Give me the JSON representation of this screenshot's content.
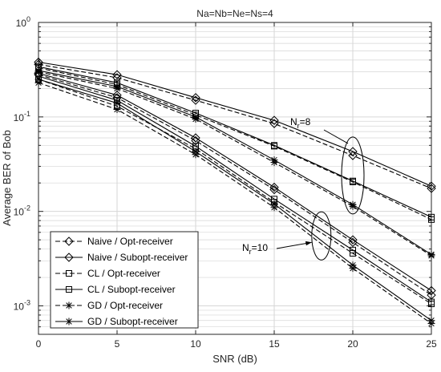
{
  "chart_data": {
    "type": "line",
    "title": "Na=Nb=Ne=Ns=4",
    "xlabel": "SNR (dB)",
    "ylabel": "Average BER of Bob",
    "x": [
      0,
      5,
      10,
      15,
      20,
      25
    ],
    "xlim": [
      0,
      25
    ],
    "ylim": [
      0.0005,
      1
    ],
    "yscale": "log",
    "grid": true,
    "x_ticks": [
      "0",
      "5",
      "10",
      "15",
      "20",
      "25"
    ],
    "y_ticks": [
      {
        "base": "10",
        "exp": "0"
      },
      {
        "base": "10",
        "exp": "-1"
      },
      {
        "base": "10",
        "exp": "-2"
      },
      {
        "base": "10",
        "exp": "-3"
      }
    ],
    "legend_position": "bottom-left",
    "series": [
      {
        "name": "Naive / Opt-receiver",
        "marker": "diamond",
        "dash": "dashed",
        "values": [
          0.36,
          0.26,
          0.15,
          0.085,
          0.039,
          0.0175
        ]
      },
      {
        "name": "Naive / Subopt-receiver",
        "marker": "diamond",
        "dash": "solid",
        "values": [
          0.38,
          0.28,
          0.16,
          0.092,
          0.043,
          0.0185
        ]
      },
      {
        "name": "CL / Opt-receiver",
        "marker": "square",
        "dash": "dashed",
        "values": [
          0.33,
          0.22,
          0.105,
          0.049,
          0.0205,
          0.0082
        ]
      },
      {
        "name": "CL / Subopt-receiver",
        "marker": "square",
        "dash": "solid",
        "values": [
          0.34,
          0.23,
          0.11,
          0.05,
          0.021,
          0.0087
        ]
      },
      {
        "name": "GD / Opt-receiver",
        "marker": "star",
        "dash": "dashed",
        "values": [
          0.3,
          0.2,
          0.095,
          0.033,
          0.0113,
          0.0034
        ]
      },
      {
        "name": "GD / Subopt-receiver",
        "marker": "star",
        "dash": "solid",
        "values": [
          0.31,
          0.21,
          0.1,
          0.035,
          0.0118,
          0.0035
        ]
      },
      {
        "name": "Naive / Opt-receiver",
        "marker": "diamond",
        "dash": "dashed",
        "values": [
          0.28,
          0.16,
          0.056,
          0.017,
          0.0047,
          0.0013
        ]
      },
      {
        "name": "Naive / Subopt-receiver",
        "marker": "diamond",
        "dash": "solid",
        "values": [
          0.29,
          0.17,
          0.06,
          0.018,
          0.005,
          0.00145
        ]
      },
      {
        "name": "CL / Opt-receiver",
        "marker": "square",
        "dash": "dashed",
        "values": [
          0.25,
          0.13,
          0.046,
          0.0125,
          0.0036,
          0.00105
        ]
      },
      {
        "name": "CL / Subopt-receiver",
        "marker": "square",
        "dash": "solid",
        "values": [
          0.27,
          0.15,
          0.049,
          0.0135,
          0.0039,
          0.0011
        ]
      },
      {
        "name": "GD / Opt-receiver",
        "marker": "star",
        "dash": "dashed",
        "values": [
          0.23,
          0.12,
          0.04,
          0.011,
          0.0025,
          0.00065
        ]
      },
      {
        "name": "GD / Subopt-receiver",
        "marker": "star",
        "dash": "solid",
        "values": [
          0.25,
          0.14,
          0.043,
          0.012,
          0.0027,
          0.0007
        ]
      }
    ],
    "legend": [
      {
        "label": "Naive / Opt-receiver",
        "marker": "diamond",
        "dash": "dashed"
      },
      {
        "label": "Naive / Subopt-receiver",
        "marker": "diamond",
        "dash": "solid"
      },
      {
        "label": "CL / Opt-receiver",
        "marker": "square",
        "dash": "dashed"
      },
      {
        "label": "CL / Subopt-receiver",
        "marker": "square",
        "dash": "solid"
      },
      {
        "label": "GD / Opt-receiver",
        "marker": "star",
        "dash": "dashed"
      },
      {
        "label": "GD / Subopt-receiver",
        "marker": "star",
        "dash": "solid"
      }
    ],
    "annotations": [
      {
        "base": "N",
        "sub": "r",
        "rest": "=8",
        "ellipse_center": [
          20,
          0.024
        ]
      },
      {
        "base": "N",
        "sub": "r",
        "rest": "=10",
        "ellipse_center": [
          18,
          0.0055
        ]
      }
    ],
    "colors": {
      "lines": "#000000",
      "grid": "#d6d6d6",
      "axes": "#262626"
    }
  }
}
